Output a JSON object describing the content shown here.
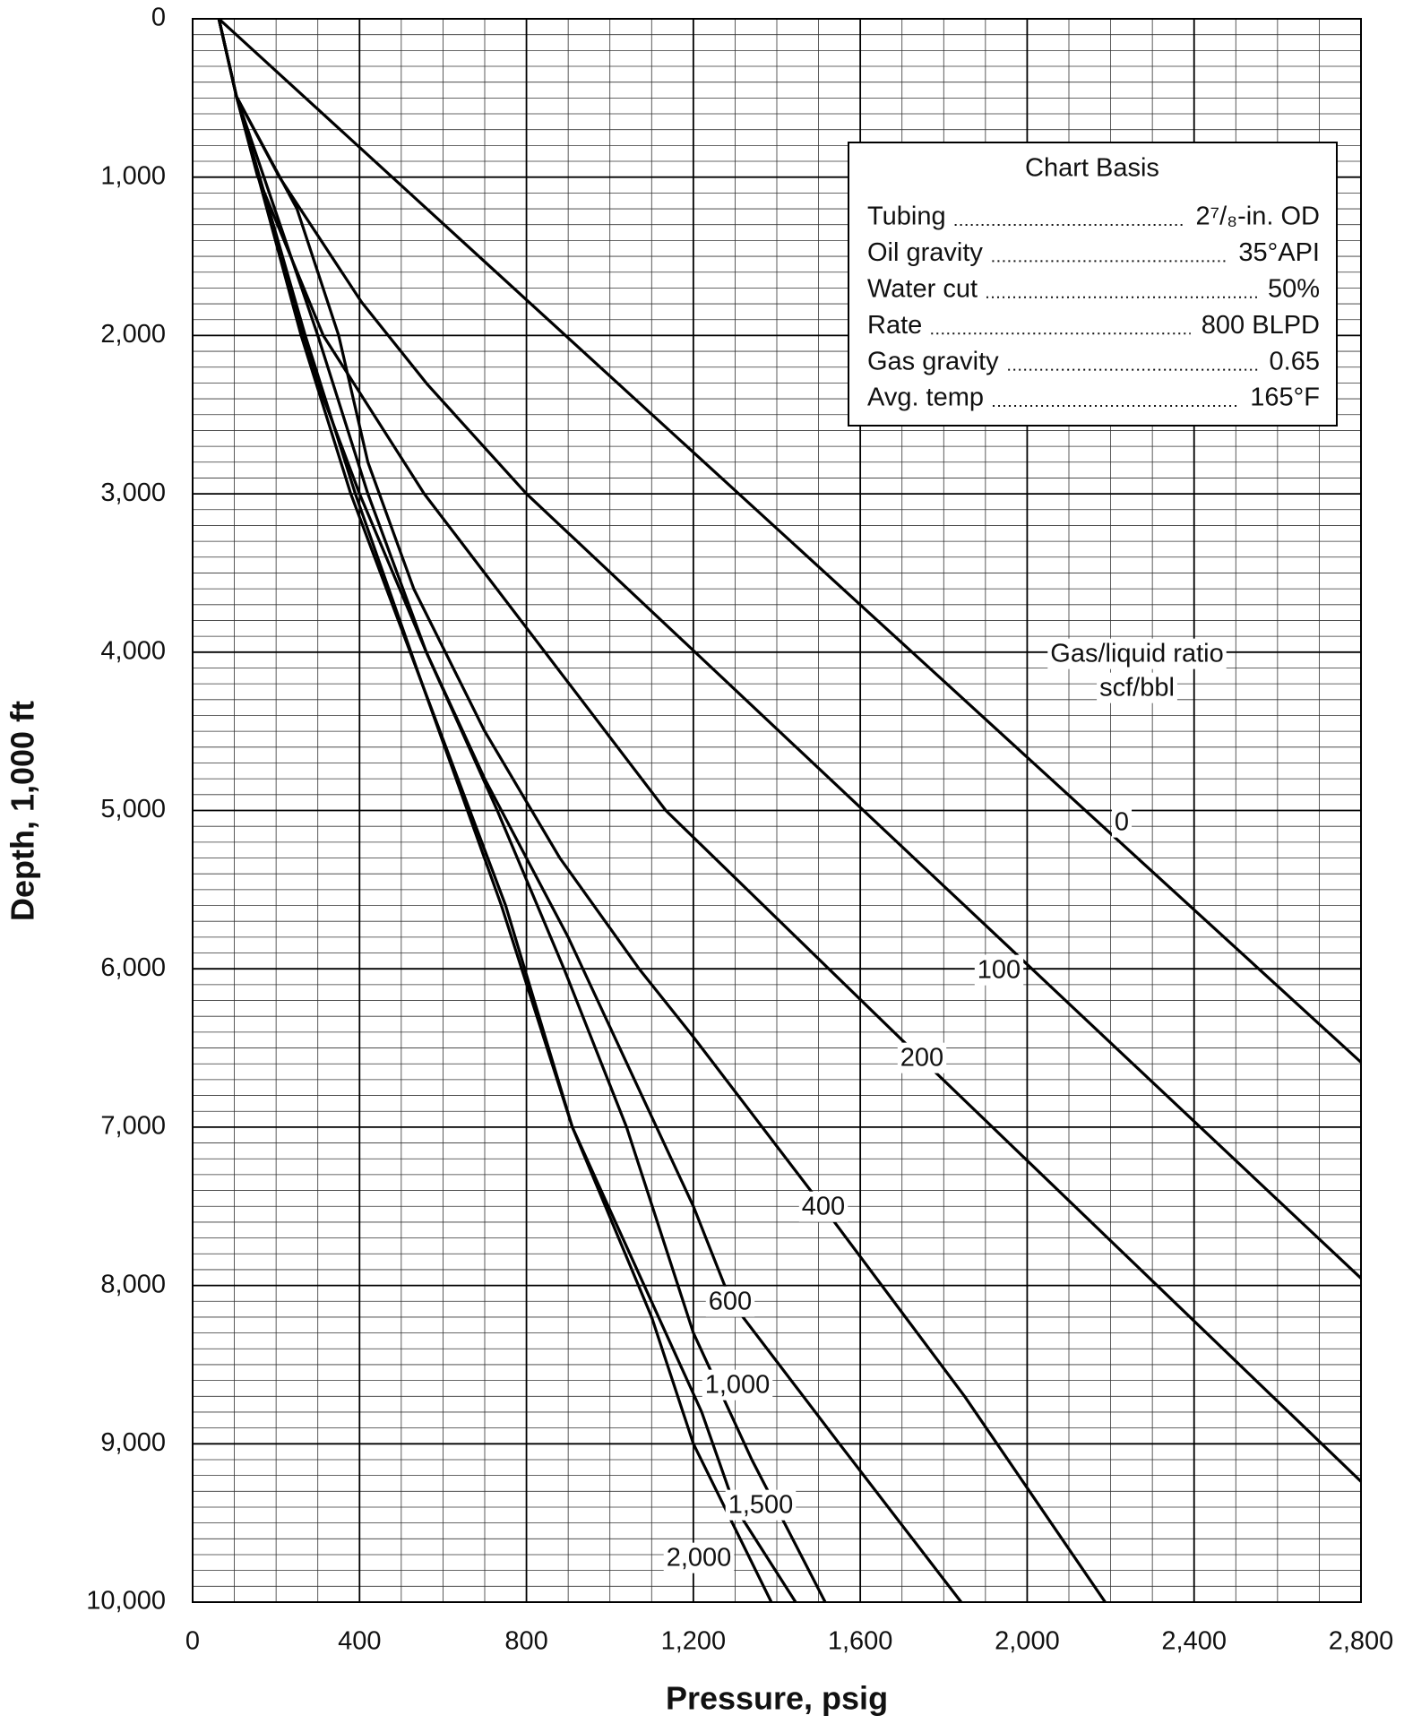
{
  "chart_data": {
    "type": "line",
    "x_label": "Pressure, psig",
    "y_label": "Depth, 1,000 ft",
    "xlim": [
      0,
      2800
    ],
    "ylim": [
      0,
      10000
    ],
    "y_inverted": true,
    "xticks": [
      0,
      400,
      800,
      {
        "value": 1200,
        "label": "1,200"
      },
      {
        "value": 1600,
        "label": "1,600"
      },
      {
        "value": 2000,
        "label": "2,000"
      },
      {
        "value": 2400,
        "label": "2,400"
      },
      {
        "value": 2800,
        "label": "2,800"
      }
    ],
    "yticks": [
      0,
      {
        "value": 1000,
        "label": "1,000"
      },
      {
        "value": 2000,
        "label": "2,000"
      },
      {
        "value": 3000,
        "label": "3,000"
      },
      {
        "value": 4000,
        "label": "4,000"
      },
      {
        "value": 5000,
        "label": "5,000"
      },
      {
        "value": 6000,
        "label": "6,000"
      },
      {
        "value": 7000,
        "label": "7,000"
      },
      {
        "value": 8000,
        "label": "8,000"
      },
      {
        "value": 9000,
        "label": "9,000"
      },
      {
        "value": 10000,
        "label": "10,000"
      }
    ],
    "grid": true,
    "minor_grid": {
      "xstep": 100,
      "ystep": 100
    },
    "series_label": [
      "Gas/liquid ratio",
      "scf/bbl"
    ],
    "series": [
      {
        "name": "0",
        "color": "#000000",
        "x": [
          63,
          2800
        ],
        "values": [
          0,
          6590
        ]
      },
      {
        "name": "100",
        "color": "#000000",
        "x": [
          63,
          105,
          208,
          405,
          563,
          800,
          1200,
          2800
        ],
        "values": [
          0,
          490,
          1000,
          1790,
          2310,
          3000,
          3990,
          7955
        ]
      },
      {
        "name": "200",
        "color": "#000000",
        "x": [
          63,
          105,
          155,
          313,
          555,
          1134,
          1747,
          2800
        ],
        "values": [
          0,
          490,
          990,
          2000,
          3000,
          5000,
          6570,
          9238
        ]
      },
      {
        "name": "400",
        "color": "#000000",
        "x": [
          63,
          105,
          250,
          350,
          420,
          530,
          700,
          880,
          1070,
          1200,
          1510,
          1850,
          2187
        ],
        "values": [
          0,
          490,
          1200,
          2000,
          2800,
          3600,
          4500,
          5300,
          6000,
          6430,
          7500,
          8700,
          10000
        ]
      },
      {
        "name": "600",
        "color": "#000000",
        "x": [
          63,
          105,
          210,
          300,
          400,
          560,
          700,
          900,
          1200,
          1290,
          1550,
          1842
        ],
        "values": [
          0,
          490,
          1500,
          2300,
          3000,
          4000,
          4800,
          5800,
          7500,
          8100,
          9000,
          10000
        ]
      },
      {
        "name": "1,000",
        "color": "#000000",
        "x": [
          63,
          105,
          300,
          420,
          560,
          730,
          890,
          1040,
          1200,
          1340,
          1516
        ],
        "values": [
          0,
          490,
          2000,
          3000,
          4000,
          5000,
          6000,
          7000,
          8300,
          9100,
          10000
        ]
      },
      {
        "name": "1,500",
        "color": "#000000",
        "x": [
          63,
          105,
          270,
          390,
          550,
          750,
          910,
          1220,
          1300,
          1445
        ],
        "values": [
          0,
          490,
          2000,
          3000,
          4200,
          5600,
          7000,
          8800,
          9400,
          10000
        ]
      },
      {
        "name": "2,000",
        "color": "#000000",
        "x": [
          63,
          105,
          260,
          379,
          550,
          740,
          910,
          1100,
          1200,
          1387
        ],
        "values": [
          0,
          490,
          2000,
          3000,
          4200,
          5600,
          7000,
          8200,
          9000,
          10000
        ]
      }
    ]
  },
  "chart_basis": {
    "title": "Chart Basis",
    "rows": [
      [
        "Tubing",
        "2⁷/₈-in. OD"
      ],
      [
        "Oil gravity",
        "35°API"
      ],
      [
        "Water cut",
        "50%"
      ],
      [
        "Rate",
        "800 BLPD"
      ],
      [
        "Gas gravity",
        "0.65"
      ],
      [
        "Avg. temp",
        "165°F"
      ]
    ]
  }
}
